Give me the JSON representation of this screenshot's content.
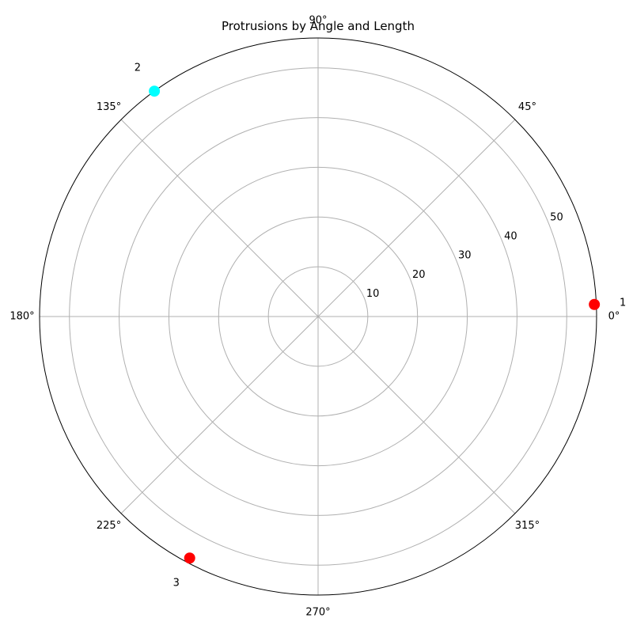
{
  "chart_data": {
    "type": "scatter",
    "coordinate_system": "polar",
    "title": "Protrusions by Angle and Length",
    "angle_unit": "degrees",
    "angle_ticks": [
      "0°",
      "45°",
      "90°",
      "135°",
      "180°",
      "225°",
      "270°",
      "315°"
    ],
    "radial_ticks": [
      "10",
      "20",
      "30",
      "40",
      "50"
    ],
    "radial_tick_values": [
      10,
      20,
      30,
      40,
      50
    ],
    "rlim": [
      0,
      56
    ],
    "grid": true,
    "legend": "none",
    "points": [
      {
        "label": "1",
        "angle": 2.5,
        "r": 55.6,
        "color": "#ff0000"
      },
      {
        "label": "2",
        "angle": 126,
        "r": 56,
        "color": "#00ffff"
      },
      {
        "label": "3",
        "angle": 242,
        "r": 55,
        "color": "#ff0000"
      }
    ]
  }
}
